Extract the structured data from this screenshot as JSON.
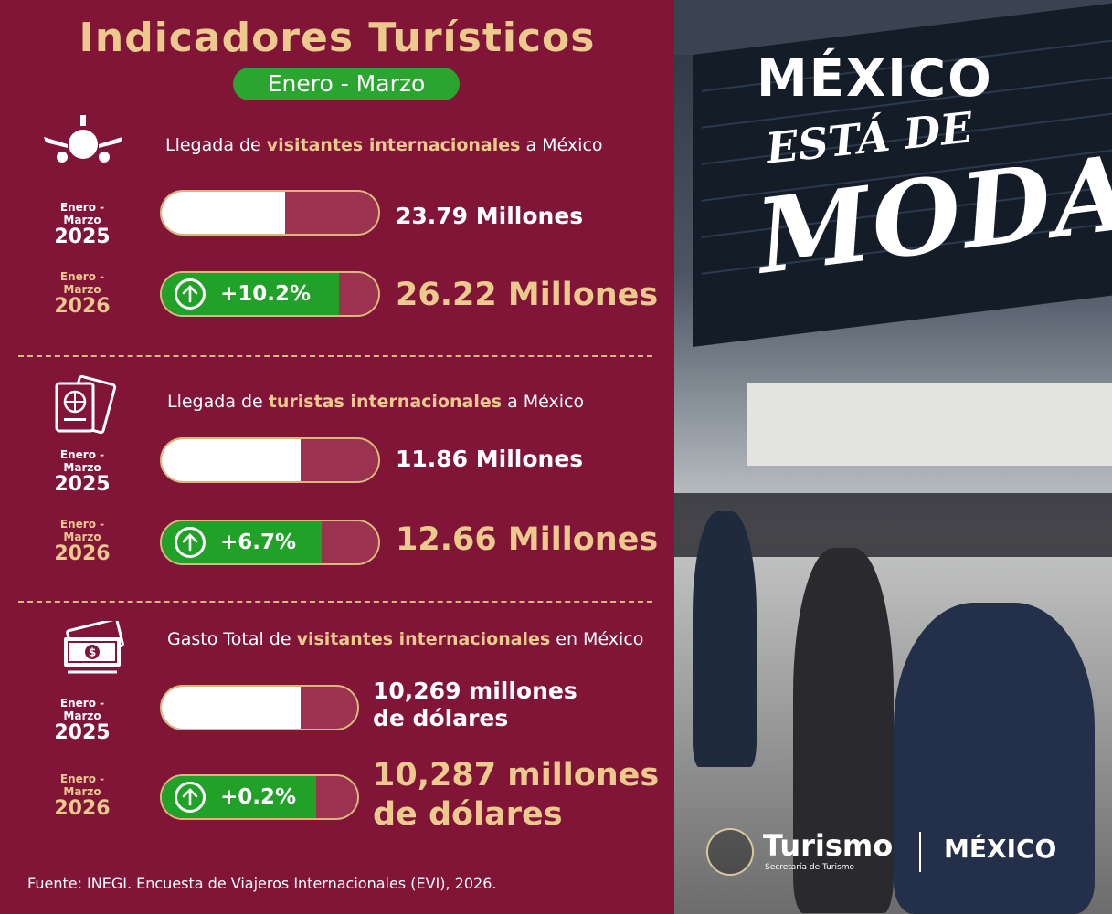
{
  "header": {
    "title": "Indicadores Turísticos",
    "period": "Enero - Marzo"
  },
  "sections": [
    {
      "title_pre": "Llegada de ",
      "title_hl": "visitantes internacionales",
      "title_post": " a México",
      "icon": "airplane-icon",
      "rows": [
        {
          "period": "Enero - Marzo",
          "year": "2025",
          "value": "23.79 Millones",
          "fill": 0.57
        },
        {
          "period": "Enero - Marzo",
          "year": "2026",
          "value": "26.22 Millones",
          "change": "+10.2%",
          "fill": 0.82
        }
      ]
    },
    {
      "title_pre": "Llegada de ",
      "title_hl": "turistas internacionales",
      "title_post": " a México",
      "icon": "passport-icon",
      "rows": [
        {
          "period": "Enero - Marzo",
          "year": "2025",
          "value": "11.86 Millones",
          "fill": 0.64
        },
        {
          "period": "Enero - Marzo",
          "year": "2026",
          "value": "12.66 Millones",
          "change": "+6.7%",
          "fill": 0.74
        }
      ]
    },
    {
      "title_pre": "Gasto Total de ",
      "title_hl": "visitantes internacionales",
      "title_post": " en México",
      "icon": "money-icon",
      "rows": [
        {
          "period": "Enero - Marzo",
          "year": "2025",
          "value_line1": "10,269 millones",
          "value_line2": "de dólares",
          "fill": 0.71
        },
        {
          "period": "Enero - Marzo",
          "year": "2026",
          "value_line1": "10,287 millones",
          "value_line2": "de dólares",
          "change": "+0.2%",
          "fill": 0.79
        }
      ]
    }
  ],
  "source": "Fuente: INEGI. Encuesta de Viajeros Internacionales (EVI), 2026.",
  "brand": {
    "mexico": "MÉXICO",
    "esta_de": "ESTÁ DE",
    "moda": "MODA",
    "turismo": "Turismo",
    "secretaria": "Secretaría de Turismo",
    "mexico_small": "MÉXICO"
  },
  "colors": {
    "background": "#811538",
    "gold": "#ecc98d",
    "green": "#22a128"
  }
}
